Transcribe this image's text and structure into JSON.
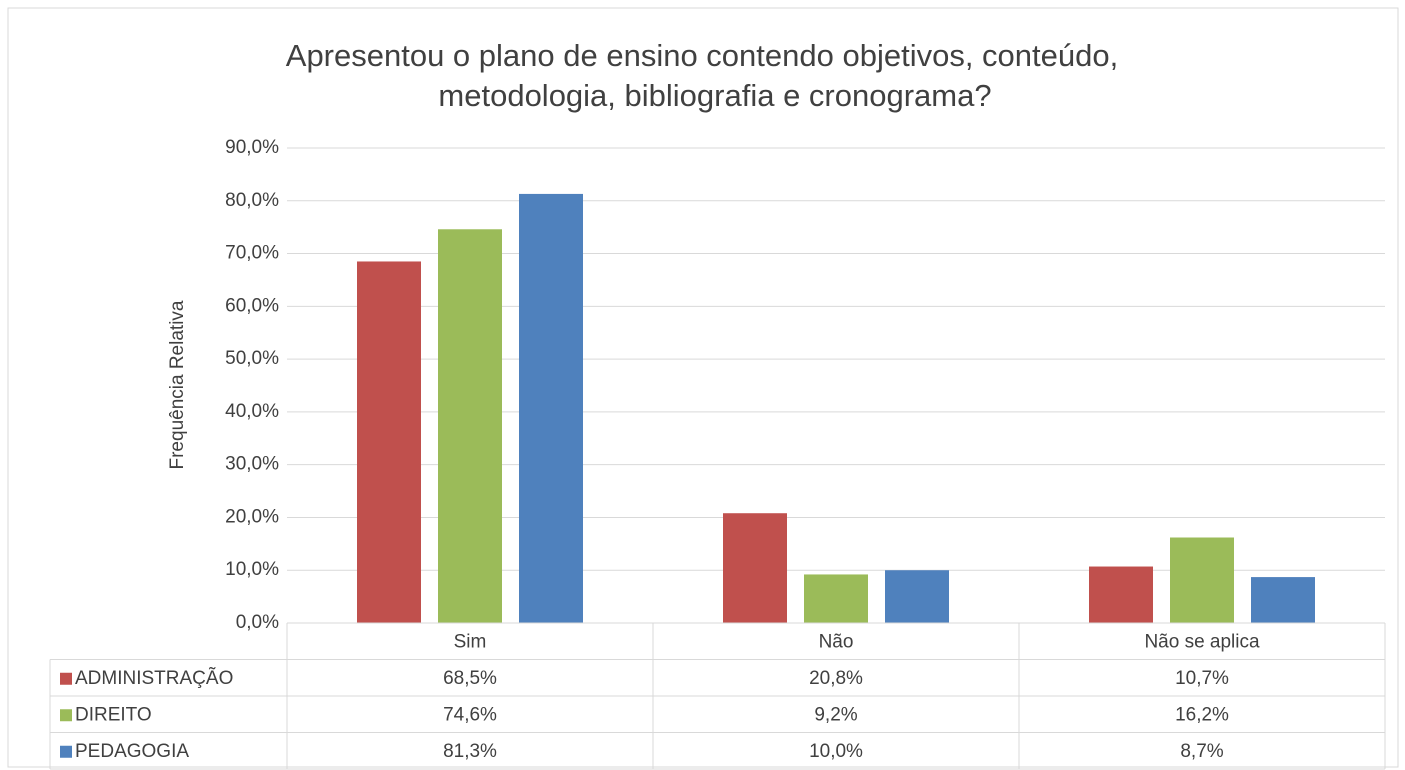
{
  "chart_data": {
    "type": "bar",
    "title": [
      "Apresentou o plano de ensino contendo objetivos, conteúdo,",
      "metodologia, bibliografia e cronograma?"
    ],
    "y_label": "Frequência Relativa",
    "categories": [
      "Sim",
      "Não",
      "Não se aplica"
    ],
    "series": [
      {
        "name": "ADMINISTRAÇÃO",
        "color": "#c0504d",
        "values": [
          68.5,
          20.8,
          10.7
        ],
        "value_labels": [
          "68,5%",
          "20,8%",
          "10,7%"
        ]
      },
      {
        "name": "DIREITO",
        "color": "#9bbb59",
        "values": [
          74.6,
          9.2,
          16.2
        ],
        "value_labels": [
          "74,6%",
          "9,2%",
          "16,2%"
        ]
      },
      {
        "name": "PEDAGOGIA",
        "color": "#4f81bd",
        "values": [
          81.3,
          10.0,
          8.7
        ],
        "value_labels": [
          "81,3%",
          "10,0%",
          "8,7%"
        ]
      }
    ],
    "ylim": [
      0,
      90
    ],
    "yticks": [
      {
        "value": 0,
        "label": "0,0%"
      },
      {
        "value": 10,
        "label": "10,0%"
      },
      {
        "value": 20,
        "label": "20,0%"
      },
      {
        "value": 30,
        "label": "30,0%"
      },
      {
        "value": 40,
        "label": "40,0%"
      },
      {
        "value": 50,
        "label": "50,0%"
      },
      {
        "value": 60,
        "label": "60,0%"
      },
      {
        "value": 70,
        "label": "70,0%"
      },
      {
        "value": 80,
        "label": "80,0%"
      },
      {
        "value": 90,
        "label": "90,0%"
      }
    ],
    "grid": true
  }
}
